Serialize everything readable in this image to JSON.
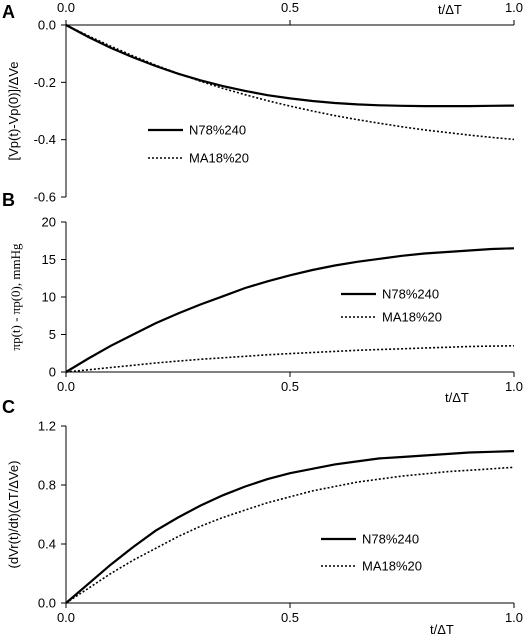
{
  "chart_data": [
    {
      "type": "line",
      "panel_label": "A",
      "xlabel": "t/ΔT",
      "xlabel_position": "top",
      "ylabel": "[Vp(t)-Vp(0)]/ΔVe",
      "xlim": [
        0,
        1
      ],
      "ylim": [
        -0.6,
        0
      ],
      "x_ticks": [
        "0.0",
        "0.5",
        "1.0"
      ],
      "y_ticks": [
        "0.0",
        "-0.2",
        "-0.4",
        "-0.6"
      ],
      "grid": false,
      "legend": "center-left",
      "series": [
        {
          "name": "N78%240",
          "style": "solid",
          "x": [
            0,
            0.05,
            0.1,
            0.15,
            0.2,
            0.25,
            0.3,
            0.35,
            0.4,
            0.45,
            0.5,
            0.55,
            0.6,
            0.65,
            0.7,
            0.75,
            0.8,
            0.85,
            0.9,
            0.95,
            1.0
          ],
          "y": [
            0,
            -0.042,
            -0.08,
            -0.113,
            -0.143,
            -0.17,
            -0.193,
            -0.213,
            -0.23,
            -0.245,
            -0.256,
            -0.265,
            -0.272,
            -0.277,
            -0.28,
            -0.282,
            -0.283,
            -0.283,
            -0.283,
            -0.282,
            -0.281
          ]
        },
        {
          "name": "MA18%20",
          "style": "dotted",
          "x": [
            0,
            0.05,
            0.1,
            0.15,
            0.2,
            0.25,
            0.3,
            0.35,
            0.4,
            0.45,
            0.5,
            0.55,
            0.6,
            0.65,
            0.7,
            0.75,
            0.8,
            0.85,
            0.9,
            0.95,
            1.0
          ],
          "y": [
            0,
            -0.038,
            -0.074,
            -0.108,
            -0.14,
            -0.169,
            -0.196,
            -0.221,
            -0.243,
            -0.264,
            -0.283,
            -0.3,
            -0.316,
            -0.33,
            -0.343,
            -0.355,
            -0.366,
            -0.375,
            -0.384,
            -0.392,
            -0.399
          ]
        }
      ]
    },
    {
      "type": "line",
      "panel_label": "B",
      "xlabel": "t/ΔT",
      "ylabel": "πp(t) - πp(0), mmHg",
      "xlim": [
        0,
        1
      ],
      "ylim": [
        0,
        20
      ],
      "x_ticks": [
        "0.0",
        "0.5",
        "1.0"
      ],
      "y_ticks": [
        "0",
        "5",
        "10",
        "15",
        "20"
      ],
      "grid": false,
      "legend": "center-right",
      "series": [
        {
          "name": "N78%240",
          "style": "solid",
          "x": [
            0,
            0.05,
            0.1,
            0.15,
            0.2,
            0.25,
            0.3,
            0.35,
            0.4,
            0.45,
            0.5,
            0.55,
            0.6,
            0.65,
            0.7,
            0.75,
            0.8,
            0.85,
            0.9,
            0.95,
            1.0
          ],
          "y": [
            0,
            1.8,
            3.5,
            5.0,
            6.5,
            7.8,
            9.0,
            10.1,
            11.2,
            12.1,
            12.9,
            13.6,
            14.2,
            14.7,
            15.1,
            15.5,
            15.8,
            16.0,
            16.2,
            16.4,
            16.5
          ]
        },
        {
          "name": "MA18%20",
          "style": "dotted",
          "x": [
            0,
            0.05,
            0.1,
            0.15,
            0.2,
            0.25,
            0.3,
            0.35,
            0.4,
            0.45,
            0.5,
            0.55,
            0.6,
            0.65,
            0.7,
            0.75,
            0.8,
            0.85,
            0.9,
            0.95,
            1.0
          ],
          "y": [
            0,
            0.3,
            0.6,
            0.9,
            1.2,
            1.45,
            1.7,
            1.9,
            2.1,
            2.3,
            2.45,
            2.6,
            2.75,
            2.9,
            3.0,
            3.1,
            3.2,
            3.3,
            3.4,
            3.45,
            3.5
          ]
        }
      ]
    },
    {
      "type": "line",
      "panel_label": "C",
      "xlabel": "t/ΔT",
      "ylabel": "(dVr(t)/dt)(ΔT/ΔVe)",
      "xlim": [
        0,
        1
      ],
      "ylim": [
        0,
        1.2
      ],
      "x_ticks": [
        "0.0",
        "0.5",
        "1.0"
      ],
      "y_ticks": [
        "0.0",
        "0.4",
        "0.8",
        "1.2"
      ],
      "grid": false,
      "legend": "center-right",
      "series": [
        {
          "name": "N78%240",
          "style": "solid",
          "x": [
            0,
            0.05,
            0.1,
            0.15,
            0.2,
            0.25,
            0.3,
            0.35,
            0.4,
            0.45,
            0.5,
            0.55,
            0.6,
            0.65,
            0.7,
            0.75,
            0.8,
            0.85,
            0.9,
            0.95,
            1.0
          ],
          "y": [
            0,
            0.13,
            0.26,
            0.38,
            0.49,
            0.58,
            0.66,
            0.73,
            0.79,
            0.84,
            0.88,
            0.91,
            0.94,
            0.96,
            0.98,
            0.99,
            1.0,
            1.01,
            1.02,
            1.025,
            1.03
          ]
        },
        {
          "name": "MA18%20",
          "style": "dotted",
          "x": [
            0,
            0.05,
            0.1,
            0.15,
            0.2,
            0.25,
            0.3,
            0.35,
            0.4,
            0.45,
            0.5,
            0.55,
            0.6,
            0.65,
            0.7,
            0.75,
            0.8,
            0.85,
            0.9,
            0.95,
            1.0
          ],
          "y": [
            0,
            0.1,
            0.2,
            0.29,
            0.37,
            0.45,
            0.52,
            0.58,
            0.63,
            0.68,
            0.72,
            0.76,
            0.79,
            0.82,
            0.84,
            0.86,
            0.875,
            0.89,
            0.9,
            0.91,
            0.92
          ]
        }
      ]
    }
  ]
}
